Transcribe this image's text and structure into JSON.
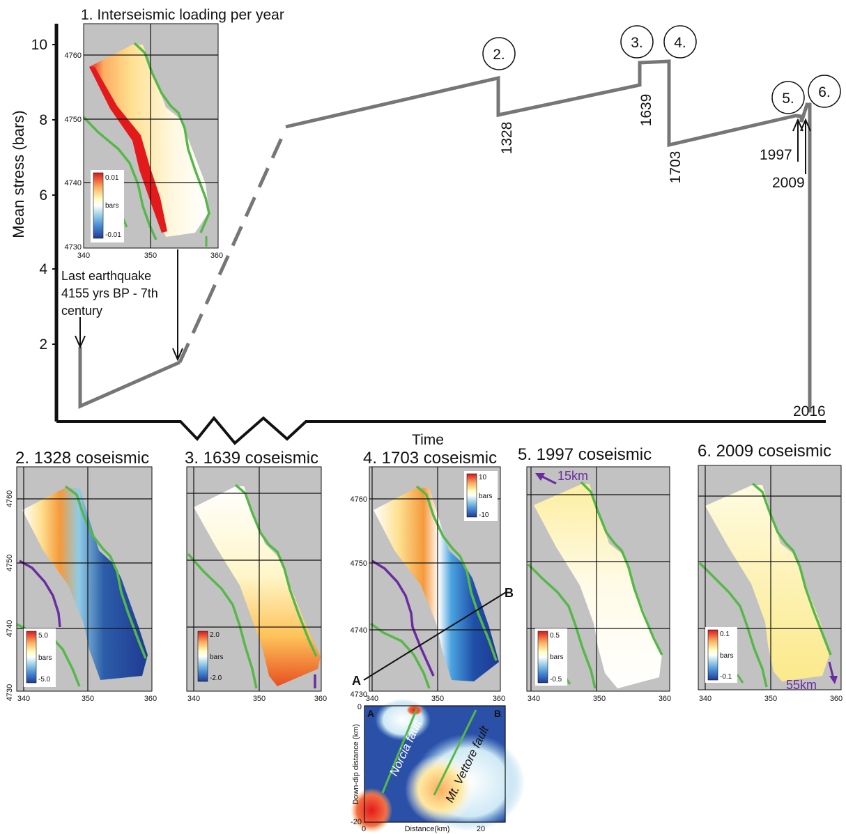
{
  "timeline": {
    "y_axis_label": "Mean stress (bars)",
    "y_ticks": [
      "10",
      "8",
      "6",
      "4",
      "2"
    ],
    "x_axis_label": "Time",
    "last_eq_note": [
      "Last earthquake",
      "4155 yrs BP - 7th",
      "century"
    ],
    "year_labels": {
      "y1328": "1328",
      "y1639": "1639",
      "y1703": "1703",
      "y1997": "1997",
      "y2009": "2009",
      "y2016": "2016"
    },
    "circles": [
      "2.",
      "3.",
      "4.",
      "5.",
      "6."
    ]
  },
  "panels": {
    "p1": {
      "title": "1. Interseismic loading per year",
      "cb_max": "0.01",
      "cb_min": "-0.01",
      "cb_unit": "bars"
    },
    "p2": {
      "title": "2. 1328 coseismic",
      "cb_max": "5.0",
      "cb_min": "-5.0",
      "cb_unit": "bars"
    },
    "p3": {
      "title": "3. 1639 coseismic",
      "cb_max": "2.0",
      "cb_min": "-2.0",
      "cb_unit": "bars"
    },
    "p4": {
      "title": "4. 1703 coseismic",
      "cb_max": "10",
      "cb_min": "-10",
      "cb_unit": "bars",
      "label_a": "A",
      "label_b": "B"
    },
    "p5": {
      "title": "5. 1997 coseismic",
      "cb_max": "0.5",
      "cb_min": "-0.5",
      "cb_unit": "bars",
      "arrow_label": "15km"
    },
    "p6": {
      "title": "6. 2009 coseismic",
      "cb_max": "0.1",
      "cb_min": "-0.1",
      "cb_unit": "bars",
      "arrow_label": "55km"
    }
  },
  "axes": {
    "x_ticks": [
      "340",
      "350",
      "360"
    ],
    "y_ticks": [
      "4760",
      "4750",
      "4740",
      "4730"
    ]
  },
  "cross_section": {
    "a": "A",
    "b": "B",
    "xlabel": "Distance(km)",
    "ylabel": "Down-dip distance (km)",
    "x_ticks": [
      "0",
      "20"
    ],
    "y_ticks": [
      "0",
      "-20"
    ],
    "fault1": "Norcia fault",
    "fault2": "Mt. Vettore fault"
  },
  "colors": {
    "line": "#767676",
    "fault": "#55b848",
    "purple": "#6a2ca0",
    "map_bg": "#c2c2c2"
  }
}
